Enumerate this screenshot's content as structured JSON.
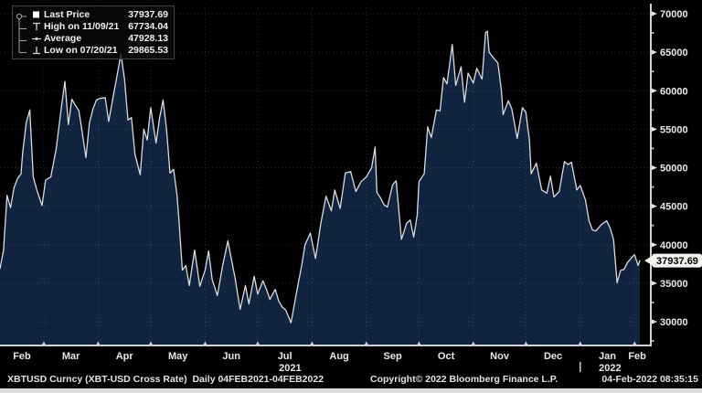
{
  "legend": {
    "items": [
      {
        "icon": "last-price-square",
        "label": "Last Price",
        "value": "37937.69"
      },
      {
        "icon": "high-marker",
        "label": "High on 11/09/21",
        "value": "67734.04"
      },
      {
        "icon": "average-marker",
        "label": "Average",
        "value": "47928.13"
      },
      {
        "icon": "low-marker",
        "label": "Low on 07/20/21",
        "value": "29865.53"
      }
    ]
  },
  "status_bar": {
    "left": "XBTUSD Curncy (XBT-USD Cross Rate)  Daily 04FEB2021-04FEB2022",
    "center": "Copyright© 2022 Bloomberg Finance L.P.",
    "right": "04-Feb-2022 08:35:15"
  },
  "chart_data": {
    "type": "area",
    "title": "XBT-USD Cross Rate, Daily, 04FEB2021-04FEB2022",
    "legend_position": "top-left",
    "grid": "dotted",
    "x_axis": {
      "start": "2021-02-04",
      "end": "2022-02-04",
      "month_labels": [
        "Feb",
        "Mar",
        "Apr",
        "May",
        "Jun",
        "Jul",
        "Aug",
        "Sep",
        "Oct",
        "Nov",
        "Dec",
        "Jan",
        "Feb"
      ],
      "year_labels": [
        "2021",
        "2022"
      ]
    },
    "y_axis": {
      "tick_min": 30000,
      "tick_max": 70000,
      "tick_step": 5000,
      "minor_step": 2500,
      "range_approx": [
        26900,
        71300
      ],
      "last_price_tag": "37937.69"
    },
    "stats": {
      "last_price": 37937.69,
      "high": {
        "date": "11/09/21",
        "value": 67734.04
      },
      "average": 47928.13,
      "low": {
        "date": "07/20/21",
        "value": 29865.53
      }
    },
    "colors": {
      "background": "#000000",
      "area_fill": "#10233f",
      "line": "#d8dce0",
      "grid": "rgba(255,255,255,0.16)",
      "axis": "#d2d2d2",
      "text": "#e8e8e8",
      "tag_bg": "#f2f2ef",
      "tag_text": "#000000"
    },
    "series": [
      {
        "name": "XBT-USD Last Price",
        "points": [
          [
            "2021-02-04",
            36900
          ],
          [
            "2021-02-06",
            39250
          ],
          [
            "2021-02-08",
            46400
          ],
          [
            "2021-02-10",
            44800
          ],
          [
            "2021-02-12",
            47400
          ],
          [
            "2021-02-14",
            48600
          ],
          [
            "2021-02-16",
            49200
          ],
          [
            "2021-02-17",
            52100
          ],
          [
            "2021-02-19",
            55900
          ],
          [
            "2021-02-21",
            57500
          ],
          [
            "2021-02-23",
            48800
          ],
          [
            "2021-02-25",
            47100
          ],
          [
            "2021-02-28",
            45100
          ],
          [
            "2021-03-02",
            48400
          ],
          [
            "2021-03-05",
            48800
          ],
          [
            "2021-03-08",
            52400
          ],
          [
            "2021-03-11",
            57800
          ],
          [
            "2021-03-13",
            61200
          ],
          [
            "2021-03-15",
            55600
          ],
          [
            "2021-03-17",
            58900
          ],
          [
            "2021-03-19",
            58100
          ],
          [
            "2021-03-21",
            57400
          ],
          [
            "2021-03-23",
            54500
          ],
          [
            "2021-03-25",
            51300
          ],
          [
            "2021-03-27",
            55800
          ],
          [
            "2021-03-29",
            57600
          ],
          [
            "2021-03-31",
            58800
          ],
          [
            "2021-04-02",
            59000
          ],
          [
            "2021-04-05",
            59100
          ],
          [
            "2021-04-07",
            56000
          ],
          [
            "2021-04-10",
            59800
          ],
          [
            "2021-04-13",
            63500
          ],
          [
            "2021-04-14",
            64800
          ],
          [
            "2021-04-16",
            61500
          ],
          [
            "2021-04-18",
            56200
          ],
          [
            "2021-04-20",
            56500
          ],
          [
            "2021-04-22",
            51700
          ],
          [
            "2021-04-25",
            49100
          ],
          [
            "2021-04-27",
            55000
          ],
          [
            "2021-04-29",
            53600
          ],
          [
            "2021-05-01",
            57800
          ],
          [
            "2021-05-04",
            53200
          ],
          [
            "2021-05-06",
            56400
          ],
          [
            "2021-05-08",
            58800
          ],
          [
            "2021-05-10",
            55000
          ],
          [
            "2021-05-12",
            49300
          ],
          [
            "2021-05-14",
            49800
          ],
          [
            "2021-05-16",
            46400
          ],
          [
            "2021-05-17",
            43500
          ],
          [
            "2021-05-19",
            36700
          ],
          [
            "2021-05-21",
            37300
          ],
          [
            "2021-05-23",
            34700
          ],
          [
            "2021-05-26",
            39300
          ],
          [
            "2021-05-29",
            34600
          ],
          [
            "2021-06-01",
            36700
          ],
          [
            "2021-06-03",
            39200
          ],
          [
            "2021-06-05",
            35500
          ],
          [
            "2021-06-08",
            33400
          ],
          [
            "2021-06-11",
            37300
          ],
          [
            "2021-06-14",
            40500
          ],
          [
            "2021-06-16",
            38100
          ],
          [
            "2021-06-18",
            35800
          ],
          [
            "2021-06-21",
            31600
          ],
          [
            "2021-06-24",
            34700
          ],
          [
            "2021-06-26",
            32300
          ],
          [
            "2021-06-29",
            35900
          ],
          [
            "2021-07-01",
            33600
          ],
          [
            "2021-07-04",
            35300
          ],
          [
            "2021-07-06",
            34200
          ],
          [
            "2021-07-08",
            32900
          ],
          [
            "2021-07-11",
            34200
          ],
          [
            "2021-07-13",
            32700
          ],
          [
            "2021-07-15",
            31900
          ],
          [
            "2021-07-17",
            31500
          ],
          [
            "2021-07-20",
            29866
          ],
          [
            "2021-07-23",
            33600
          ],
          [
            "2021-07-26",
            37200
          ],
          [
            "2021-07-28",
            40000
          ],
          [
            "2021-07-31",
            41500
          ],
          [
            "2021-08-03",
            38200
          ],
          [
            "2021-08-06",
            42800
          ],
          [
            "2021-08-09",
            46300
          ],
          [
            "2021-08-12",
            44400
          ],
          [
            "2021-08-14",
            47100
          ],
          [
            "2021-08-17",
            44700
          ],
          [
            "2021-08-20",
            49300
          ],
          [
            "2021-08-23",
            49500
          ],
          [
            "2021-08-26",
            46900
          ],
          [
            "2021-08-29",
            48200
          ],
          [
            "2021-09-01",
            48800
          ],
          [
            "2021-09-04",
            50000
          ],
          [
            "2021-09-06",
            52700
          ],
          [
            "2021-09-07",
            46800
          ],
          [
            "2021-09-09",
            46100
          ],
          [
            "2021-09-11",
            45200
          ],
          [
            "2021-09-13",
            44900
          ],
          [
            "2021-09-16",
            47800
          ],
          [
            "2021-09-18",
            48300
          ],
          [
            "2021-09-21",
            40700
          ],
          [
            "2021-09-24",
            42800
          ],
          [
            "2021-09-26",
            43200
          ],
          [
            "2021-09-28",
            41000
          ],
          [
            "2021-09-30",
            43800
          ],
          [
            "2021-10-01",
            48200
          ],
          [
            "2021-10-04",
            49200
          ],
          [
            "2021-10-06",
            55300
          ],
          [
            "2021-10-08",
            53900
          ],
          [
            "2021-10-11",
            57500
          ],
          [
            "2021-10-13",
            57400
          ],
          [
            "2021-10-15",
            61700
          ],
          [
            "2021-10-17",
            60900
          ],
          [
            "2021-10-20",
            66000
          ],
          [
            "2021-10-22",
            60700
          ],
          [
            "2021-10-25",
            63100
          ],
          [
            "2021-10-27",
            58500
          ],
          [
            "2021-10-29",
            62300
          ],
          [
            "2021-11-01",
            61000
          ],
          [
            "2021-11-03",
            62900
          ],
          [
            "2021-11-06",
            61500
          ],
          [
            "2021-11-08",
            67550
          ],
          [
            "2021-11-09",
            67734
          ],
          [
            "2021-11-10",
            64995
          ],
          [
            "2021-11-12",
            64400
          ],
          [
            "2021-11-15",
            63600
          ],
          [
            "2021-11-17",
            60100
          ],
          [
            "2021-11-18",
            56900
          ],
          [
            "2021-11-21",
            58700
          ],
          [
            "2021-11-23",
            57600
          ],
          [
            "2021-11-26",
            53800
          ],
          [
            "2021-11-29",
            57800
          ],
          [
            "2021-12-01",
            57200
          ],
          [
            "2021-12-03",
            53600
          ],
          [
            "2021-12-04",
            49200
          ],
          [
            "2021-12-07",
            50600
          ],
          [
            "2021-12-10",
            47100
          ],
          [
            "2021-12-13",
            46700
          ],
          [
            "2021-12-15",
            48900
          ],
          [
            "2021-12-17",
            46200
          ],
          [
            "2021-12-20",
            46900
          ],
          [
            "2021-12-23",
            50800
          ],
          [
            "2021-12-25",
            50400
          ],
          [
            "2021-12-27",
            50700
          ],
          [
            "2021-12-30",
            47100
          ],
          [
            "2022-01-01",
            47700
          ],
          [
            "2022-01-04",
            45800
          ],
          [
            "2022-01-06",
            43100
          ],
          [
            "2022-01-08",
            41900
          ],
          [
            "2022-01-10",
            41800
          ],
          [
            "2022-01-13",
            42600
          ],
          [
            "2022-01-16",
            43100
          ],
          [
            "2022-01-18",
            42200
          ],
          [
            "2022-01-20",
            40700
          ],
          [
            "2022-01-22",
            35070
          ],
          [
            "2022-01-24",
            36650
          ],
          [
            "2022-01-26",
            36800
          ],
          [
            "2022-01-28",
            37700
          ],
          [
            "2022-01-31",
            38500
          ],
          [
            "2022-02-01",
            38700
          ],
          [
            "2022-02-03",
            37300
          ],
          [
            "2022-02-04",
            37937.69
          ]
        ]
      }
    ]
  }
}
